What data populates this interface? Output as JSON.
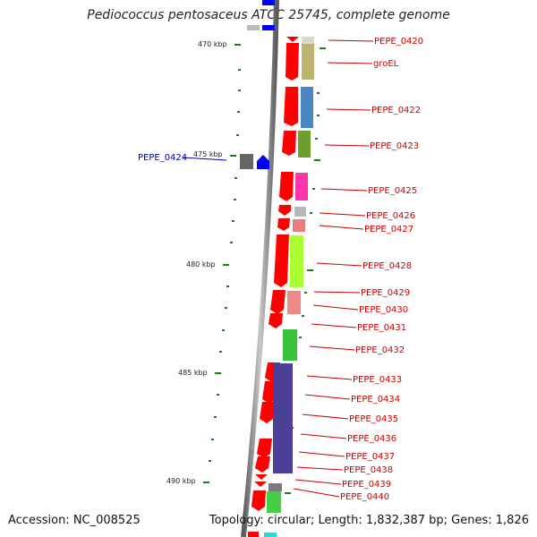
{
  "title": "Pediococcus pentosaceus ATCC 25745, complete genome",
  "footer": {
    "accession": "Accession: NC_008525",
    "summary": "Topology: circular; Length: 1,832,387 bp; Genes: 1,826"
  },
  "colors": {
    "backbone": "#8a8a8a",
    "cds": "#ff0000",
    "tick": "#1e7a1e",
    "label_right": "#cc0000",
    "label_left": "#0000aa"
  },
  "scale_labels": [
    "470 kbp",
    "475 kbp",
    "480 kbp",
    "485 kbp",
    "490 kbp"
  ],
  "genes_right": [
    {
      "name": "PEPE_0420",
      "color": "#ddd9c8"
    },
    {
      "name": "groEL",
      "color": "#bdb26e"
    },
    {
      "name": "PEPE_0422",
      "color": "#4a86c2"
    },
    {
      "name": "PEPE_0423",
      "color": "#6f9e2e"
    },
    {
      "name": "PEPE_0425",
      "color": "#ff33aa"
    },
    {
      "name": "PEPE_0426",
      "color": "#b8b8b8"
    },
    {
      "name": "PEPE_0427",
      "color": "#e97d7d"
    },
    {
      "name": "PEPE_0428",
      "color": "#aaff33"
    },
    {
      "name": "PEPE_0429",
      "color": "#f08a8a"
    },
    {
      "name": "PEPE_0430",
      "color": "#f08a8a"
    },
    {
      "name": "PEPE_0431",
      "color": "#ff0000"
    },
    {
      "name": "PEPE_0432",
      "color": "#3ac23a"
    },
    {
      "name": "PEPE_0433",
      "color": "#4c3f96"
    },
    {
      "name": "PEPE_0434",
      "color": "#4c3f96"
    },
    {
      "name": "PEPE_0435",
      "color": "#4c3f96"
    },
    {
      "name": "PEPE_0436",
      "color": "#4c3f96"
    },
    {
      "name": "PEPE_0437",
      "color": "#4c3f96"
    },
    {
      "name": "PEPE_0438",
      "color": "#ff0000"
    },
    {
      "name": "PEPE_0439",
      "color": "#7a7a7a"
    },
    {
      "name": "PEPE_0440",
      "color": "#44d044"
    }
  ],
  "genes_left": [
    {
      "name": "PEPE_0424",
      "color": "#0000ff"
    }
  ]
}
